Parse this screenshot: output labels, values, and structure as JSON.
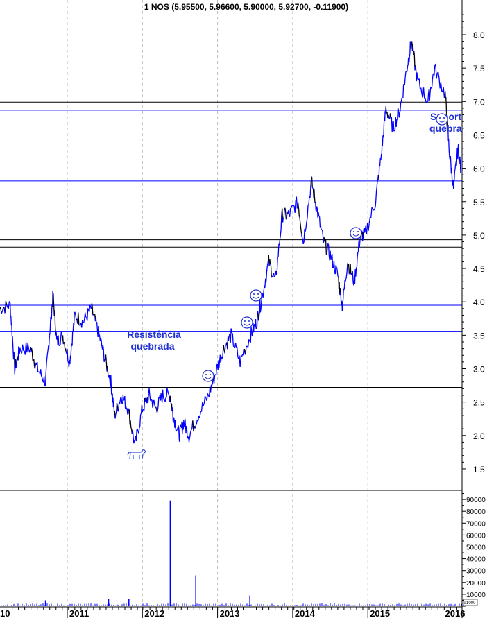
{
  "chart_data": {
    "type": "line",
    "title": "1 NOS (5.95500, 5.96600, 5.90000, 5.92700, -0.11900)",
    "price_axis": {
      "ylim": [
        1.1,
        8.4
      ],
      "ticks": [
        "1.5",
        "2.0",
        "2.5",
        "3.0",
        "3.5",
        "4.0",
        "4.5",
        "5.0",
        "5.5",
        "6.0",
        "6.5",
        "7.0",
        "7.5",
        "8.0"
      ]
    },
    "volume_axis": {
      "ylim": [
        0,
        95000
      ],
      "ticks": [
        "10000",
        "20000",
        "30000",
        "40000",
        "50000",
        "60000",
        "70000",
        "80000",
        "90000"
      ],
      "unit_label": "x1000"
    },
    "x_axis": {
      "ticks": [
        "10",
        "2011",
        "2012",
        "2013",
        "2014",
        "2015",
        "2016"
      ],
      "xlim": [
        2010.1,
        2016.15
      ]
    },
    "grid": "vertical dashed at year boundaries",
    "colors": {
      "line": "#0000ff",
      "down": "#000000",
      "annotation": "#1f2fd6"
    },
    "horizontal_lines": [
      {
        "value": 7.59,
        "color": "#000000"
      },
      {
        "value": 6.99,
        "color": "#000000"
      },
      {
        "value": 6.87,
        "color": "#0000ff"
      },
      {
        "value": 5.81,
        "color": "#0000ff"
      },
      {
        "value": 4.93,
        "color": "#000000"
      },
      {
        "value": 4.82,
        "color": "#000000"
      },
      {
        "value": 3.95,
        "color": "#0000ff"
      },
      {
        "value": 3.56,
        "color": "#0000ff"
      },
      {
        "value": 2.72,
        "color": "#000000"
      }
    ],
    "price": {
      "x": [
        2010.1,
        2010.24,
        2010.3,
        2010.37,
        2010.51,
        2010.6,
        2010.71,
        2010.77,
        2010.81,
        2010.86,
        2010.94,
        2011.03,
        2011.1,
        2011.21,
        2011.32,
        2011.4,
        2011.49,
        2011.58,
        2011.63,
        2011.72,
        2011.81,
        2011.9,
        2012.0,
        2012.09,
        2012.18,
        2012.27,
        2012.37,
        2012.41,
        2012.49,
        2012.55,
        2012.62,
        2012.74,
        2012.88,
        2012.99,
        2013.08,
        2013.18,
        2013.3,
        2013.44,
        2013.52,
        2013.58,
        2013.68,
        2013.77,
        2013.86,
        2013.95,
        2014.07,
        2014.14,
        2014.25,
        2014.32,
        2014.41,
        2014.5,
        2014.6,
        2014.66,
        2014.73,
        2014.82,
        2014.9,
        2014.96,
        2015.1,
        2015.18,
        2015.24,
        2015.34,
        2015.43,
        2015.52,
        2015.58,
        2015.66,
        2015.8,
        2015.89,
        2016.03,
        2016.08,
        2016.14,
        2016.2,
        2016.25
      ],
      "values": [
        3.9,
        3.95,
        3.0,
        3.3,
        3.3,
        3.0,
        2.8,
        3.6,
        4.1,
        3.4,
        3.5,
        3.1,
        3.8,
        3.7,
        3.9,
        3.6,
        3.2,
        2.8,
        2.3,
        2.6,
        2.4,
        1.85,
        2.4,
        2.6,
        2.4,
        2.6,
        2.6,
        2.3,
        2.0,
        2.2,
        2.0,
        2.3,
        2.6,
        3.0,
        3.3,
        3.5,
        3.1,
        3.5,
        3.7,
        4.0,
        4.6,
        4.3,
        5.3,
        5.3,
        5.5,
        4.9,
        5.8,
        5.4,
        4.9,
        4.7,
        4.4,
        3.95,
        4.6,
        4.3,
        5.0,
        5.0,
        5.5,
        6.2,
        6.9,
        6.6,
        6.9,
        7.5,
        7.9,
        7.3,
        7.0,
        7.5,
        7.1,
        6.3,
        5.7,
        6.3,
        5.93
      ]
    },
    "volume": {
      "x": [
        2010.71,
        2011.55,
        2011.82,
        2012.37,
        2012.71,
        2013.43
      ],
      "values": [
        5000,
        6000,
        6000,
        89000,
        26000,
        9000
      ]
    },
    "annotations": [
      {
        "text": "Resistência",
        "text2": "quebrada"
      },
      {
        "text": "Suport",
        "text2": "quebra"
      }
    ],
    "icons": [
      "smiley-icon",
      "smiley-icon",
      "smiley-icon",
      "smiley-icon",
      "smiley-icon",
      "bull-icon"
    ]
  }
}
